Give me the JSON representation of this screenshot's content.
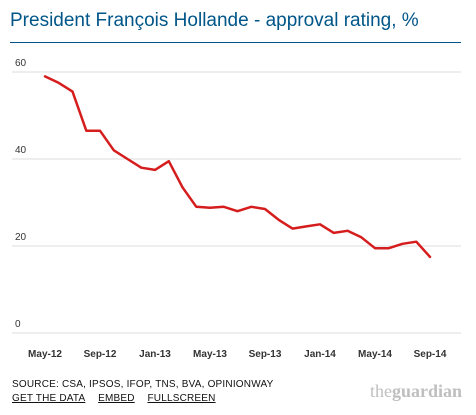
{
  "title": "President François Hollande - approval rating, %",
  "footer": {
    "source": "SOURCE: CSA, IPSOS, IFOP, TNS, BVA, OPINIONWAY",
    "links": [
      "GET THE DATA",
      "EMBED",
      "FULLSCREEN"
    ]
  },
  "logo": {
    "part1": "the",
    "part2": "guardian"
  },
  "colors": {
    "title": "#005689",
    "line": "#d61d1d",
    "grid": "#dddddd",
    "logo": "#bfbfbf"
  },
  "chart_data": {
    "type": "line",
    "title": "President François Hollande - approval rating, %",
    "xlabel": "",
    "ylabel": "",
    "ylim": [
      0,
      60
    ],
    "grid": true,
    "yticks": [
      0,
      20,
      40,
      60
    ],
    "xticks": [
      "May-12",
      "Sep-12",
      "Jan-13",
      "May-13",
      "Sep-13",
      "Jan-14",
      "May-14",
      "Sep-14"
    ],
    "x": [
      "2012-05",
      "2012-06",
      "2012-07",
      "2012-08",
      "2012-09",
      "2012-10",
      "2012-11",
      "2012-12",
      "2013-01",
      "2013-02",
      "2013-03",
      "2013-04",
      "2013-05",
      "2013-06",
      "2013-07",
      "2013-08",
      "2013-09",
      "2013-10",
      "2013-11",
      "2013-12",
      "2014-01",
      "2014-02",
      "2014-03",
      "2014-04",
      "2014-05",
      "2014-06",
      "2014-07",
      "2014-08",
      "2014-09"
    ],
    "series": [
      {
        "values": [
          59,
          57.5,
          55.5,
          46.5,
          46.5,
          42,
          40,
          38,
          37.5,
          39.5,
          33.5,
          29,
          28.8,
          29,
          28,
          29,
          28.5,
          26,
          24,
          24.5,
          25,
          23,
          23.5,
          22,
          19.5,
          19.5,
          20.5,
          21,
          17.5
        ]
      }
    ]
  }
}
